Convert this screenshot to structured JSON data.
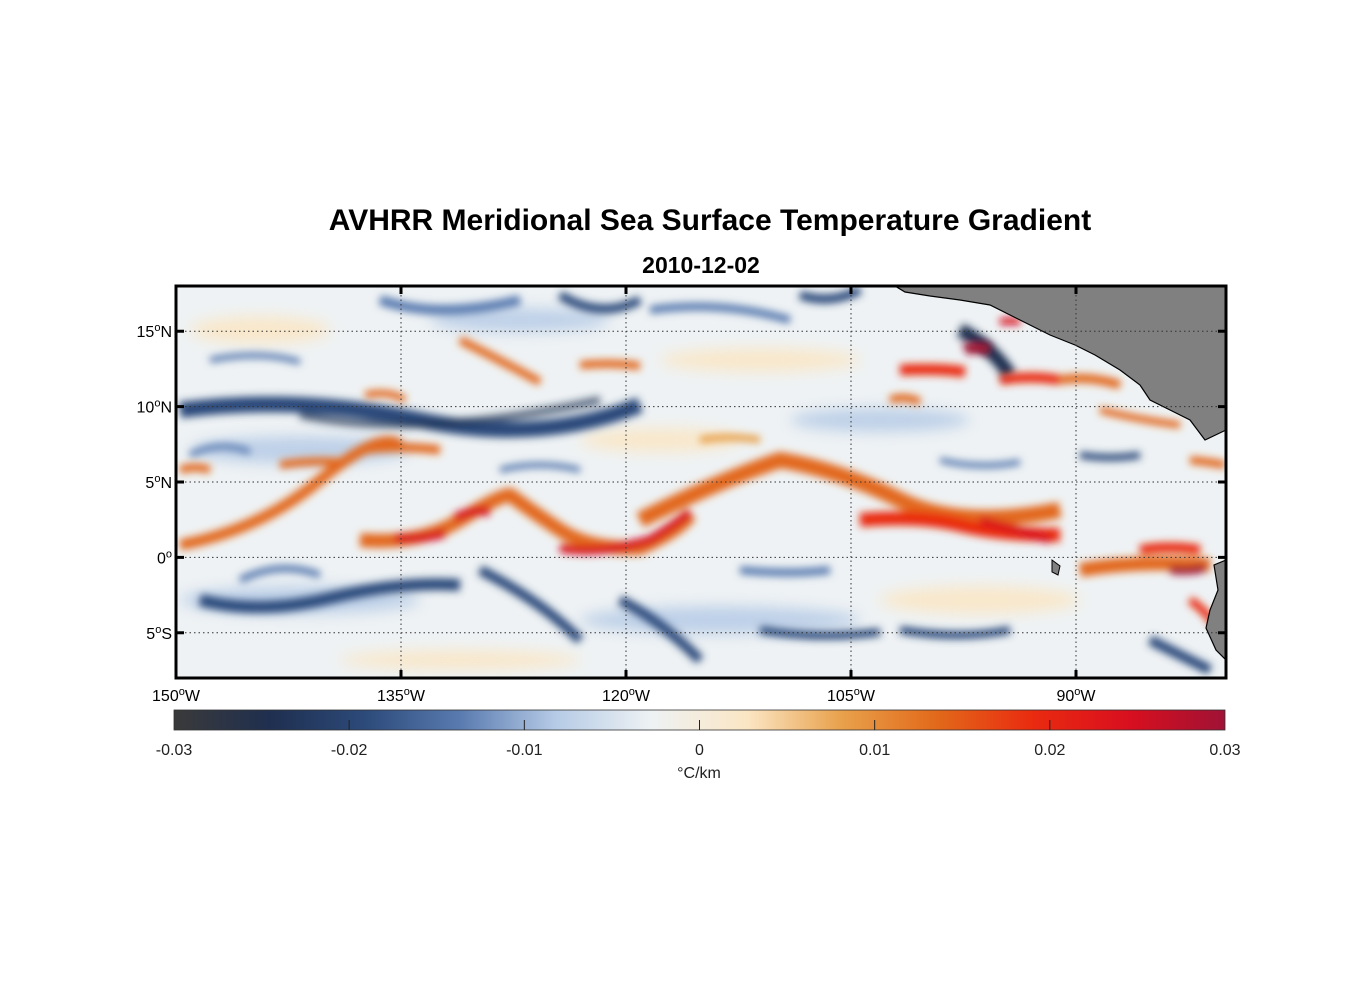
{
  "title": "AVHRR Meridional Sea Surface Temperature Gradient",
  "subtitle": "2010-12-02",
  "map": {
    "lon_range": [
      -150,
      -80
    ],
    "lat_range": [
      -8,
      18
    ],
    "lon_ticks": [
      {
        "value": -150,
        "num": "150",
        "hemi": "W"
      },
      {
        "value": -135,
        "num": "135",
        "hemi": "W"
      },
      {
        "value": -120,
        "num": "120",
        "hemi": "W"
      },
      {
        "value": -105,
        "num": "105",
        "hemi": "W"
      },
      {
        "value": -90,
        "num": "90",
        "hemi": "W"
      }
    ],
    "lat_ticks": [
      {
        "value": 15,
        "num": "15",
        "hemi": "N"
      },
      {
        "value": 10,
        "num": "10",
        "hemi": "N"
      },
      {
        "value": 5,
        "num": "5",
        "hemi": "N"
      },
      {
        "value": 0,
        "num": "0",
        "hemi": ""
      },
      {
        "value": -5,
        "num": "5",
        "hemi": "S"
      }
    ],
    "degree_symbol": "o",
    "grid": "dotted",
    "land_color": "#808080",
    "colormap": [
      "#3a3a3a",
      "#1f2f4f",
      "#2c4a7a",
      "#5a7bb0",
      "#b6cbe6",
      "#eef2f4",
      "#fbe6c4",
      "#e8a04a",
      "#e2681a",
      "#ea2a10",
      "#d80f1f",
      "#a01235"
    ]
  },
  "colorbar": {
    "range": [
      -0.03,
      0.03
    ],
    "ticks": [
      "-0.03",
      "-0.02",
      "-0.01",
      "0",
      "0.01",
      "0.02",
      "0.03"
    ],
    "tick_values": [
      -0.03,
      -0.02,
      -0.01,
      0,
      0.01,
      0.02,
      0.03
    ],
    "label": "°C/km"
  }
}
